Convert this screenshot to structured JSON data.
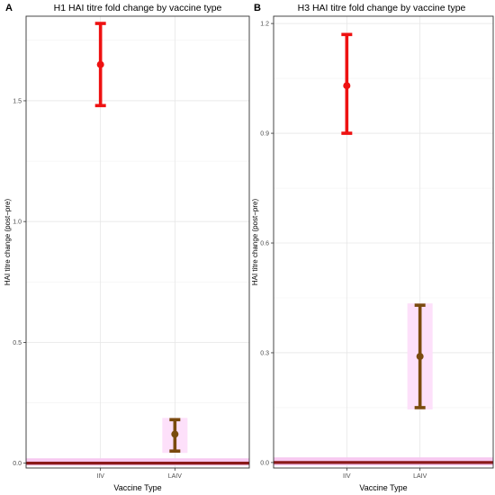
{
  "figure": {
    "background": "#ffffff",
    "panel_border": "#333333",
    "grid_major": "#e6e6e6",
    "grid_minor": "#f2f2f2",
    "tick_label_color": "#4d4d4d"
  },
  "chart_data": [
    {
      "panel_label": "A",
      "type": "scatter",
      "subtype": "point-with-errorbars",
      "title": "H1 HAI titre fold change by vaccine type",
      "xlabel": "Vaccine Type",
      "ylabel": "HAI titre change (post−pre)",
      "categories": [
        "IIV",
        "LAIV"
      ],
      "ylim": [
        -0.02,
        1.85
      ],
      "yticks": [
        0.0,
        0.5,
        1.0,
        1.5
      ],
      "ytick_labels": [
        "0.0",
        "0.5",
        "1.0",
        "1.5"
      ],
      "grid": true,
      "legend": "none",
      "points": [
        {
          "x": "IIV",
          "y": 1.65,
          "lower": 1.48,
          "upper": 1.82,
          "color": "#ee1111",
          "band": false
        },
        {
          "x": "LAIV",
          "y": 0.12,
          "lower": 0.05,
          "upper": 0.18,
          "color": "#7a4a0e",
          "band": true
        }
      ],
      "reference_line": {
        "y": 0.0,
        "color": "#8b1a1a"
      },
      "reference_band": {
        "lower": -0.01,
        "upper": 0.02,
        "color": "#f7c8f0"
      },
      "errorbar_band_color": "#fde0fa"
    },
    {
      "panel_label": "B",
      "type": "scatter",
      "subtype": "point-with-errorbars",
      "title": "H3 HAI titre fold change by vaccine type",
      "xlabel": "Vaccine Type",
      "ylabel": "HAI titre change (post−pre)",
      "categories": [
        "IIV",
        "LAIV"
      ],
      "ylim": [
        -0.015,
        1.22
      ],
      "yticks": [
        0.0,
        0.3,
        0.6,
        0.9,
        1.2
      ],
      "ytick_labels": [
        "0.0",
        "0.3",
        "0.6",
        "0.9",
        "1.2"
      ],
      "grid": true,
      "legend": "none",
      "points": [
        {
          "x": "IIV",
          "y": 1.03,
          "lower": 0.9,
          "upper": 1.17,
          "color": "#ee1111",
          "band": false
        },
        {
          "x": "LAIV",
          "y": 0.29,
          "lower": 0.15,
          "upper": 0.43,
          "color": "#7a4a0e",
          "band": true
        }
      ],
      "reference_line": {
        "y": 0.0,
        "color": "#8b1a1a"
      },
      "reference_band": {
        "lower": -0.008,
        "upper": 0.014,
        "color": "#f7c8f0"
      },
      "errorbar_band_color": "#fde0fa"
    }
  ]
}
